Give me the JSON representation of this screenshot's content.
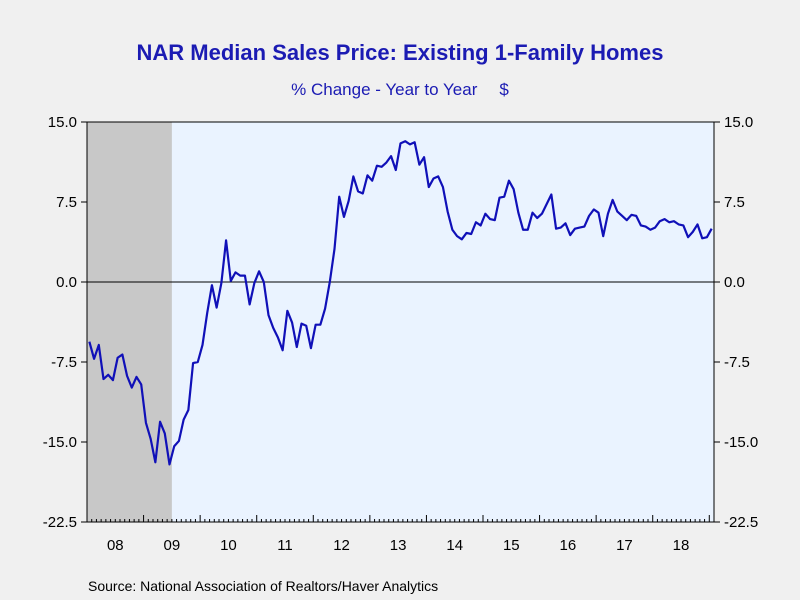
{
  "chart_data": {
    "type": "line",
    "title": "NAR Median Sales Price: Existing 1-Family Homes",
    "subtitle": "% Change - Year to Year",
    "unit_label": "$",
    "source": "Source:  National Association of Realtors/Haver Analytics",
    "ylim": [
      -22.5,
      15.0
    ],
    "y_ticks": [
      "15.0",
      "7.5",
      "0.0",
      "-7.5",
      "-15.0",
      "-22.5"
    ],
    "x_tick_labels": [
      "08",
      "09",
      "10",
      "11",
      "12",
      "13",
      "14",
      "15",
      "16",
      "17",
      "18"
    ],
    "recession_shading": {
      "start": "2008-01",
      "end": "2009-06",
      "color": "#c8c8c8"
    },
    "plot_background": "#eaf3ff",
    "line_color": "#1010b8",
    "zero_line": true,
    "series": [
      {
        "start": "2008-01",
        "values": [
          -5.6,
          -7.2,
          -5.9,
          -9.1,
          -8.7,
          -9.2,
          -7.1,
          -6.8,
          -8.8,
          -9.9,
          -8.9,
          -9.6,
          -13.2,
          -14.7,
          -16.9,
          -13.1,
          -14.2,
          -17.1,
          -15.4,
          -14.9,
          -12.9,
          -12.0,
          -7.6,
          -7.5,
          -5.9,
          -2.9,
          -0.3,
          -2.4,
          -0.1,
          3.9,
          0.1,
          0.9,
          0.6,
          0.6,
          -2.1,
          -0.1,
          1.0,
          0.0,
          -3.1,
          -4.3,
          -5.2,
          -6.4,
          -2.7,
          -3.8,
          -6.1,
          -3.9,
          -4.1,
          -6.2,
          -4.0,
          -4.0,
          -2.5,
          0.0,
          3.1,
          8.0,
          6.1,
          7.6,
          9.9,
          8.5,
          8.3,
          10.0,
          9.5,
          10.9,
          10.8,
          11.2,
          11.8,
          10.5,
          13.0,
          13.2,
          12.9,
          13.1,
          11.0,
          11.7,
          8.9,
          9.7,
          9.9,
          8.9,
          6.6,
          4.9,
          4.3,
          4.0,
          4.6,
          4.5,
          5.6,
          5.3,
          6.4,
          5.9,
          5.8,
          7.9,
          8.0,
          9.5,
          8.7,
          6.5,
          4.9,
          4.9,
          6.5,
          6.0,
          6.4,
          7.3,
          8.2,
          5.0,
          5.1,
          5.5,
          4.4,
          5.0,
          5.1,
          5.2,
          6.2,
          6.8,
          6.5,
          4.3,
          6.4,
          7.7,
          6.6,
          6.2,
          5.8,
          6.3,
          6.2,
          5.3,
          5.2,
          4.9,
          5.1,
          5.7,
          5.9,
          5.6,
          5.7,
          5.4,
          5.3,
          4.2,
          4.7,
          5.4,
          4.1,
          4.2,
          5.0
        ]
      }
    ]
  }
}
